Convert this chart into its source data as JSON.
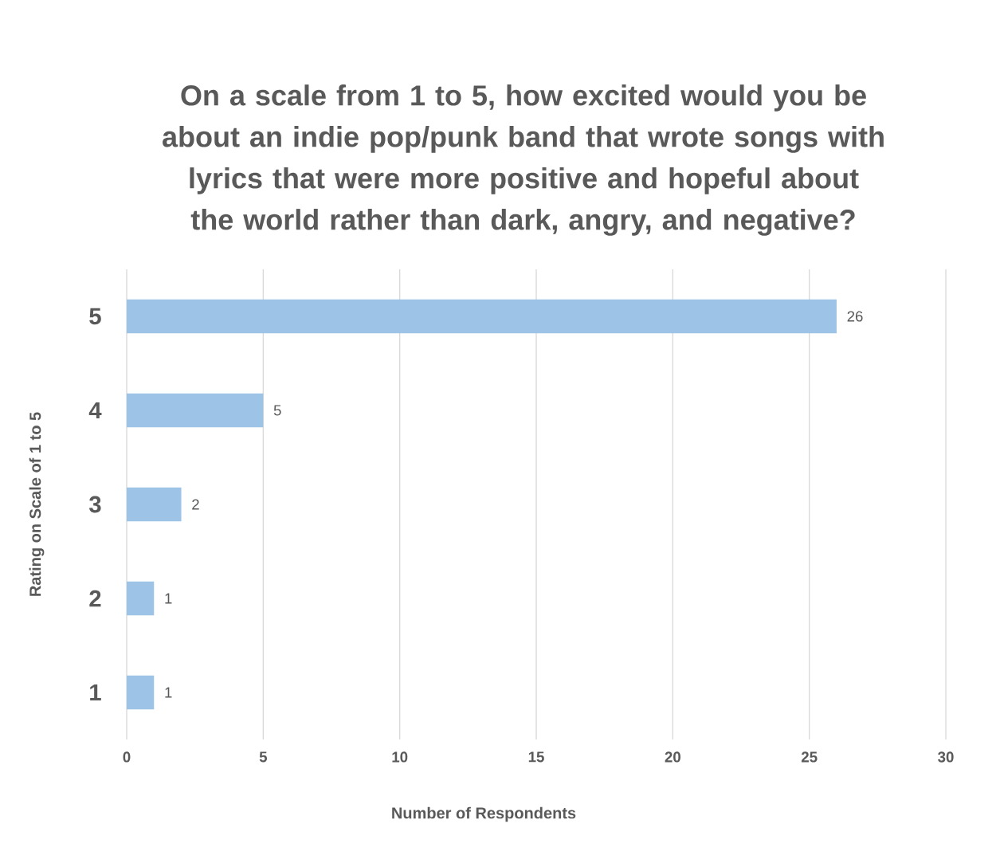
{
  "chart_data": {
    "type": "bar",
    "orientation": "horizontal",
    "title": "On a scale from 1 to 5, how excited would you be about an indie pop/punk band that wrote songs with lyrics that were more positive and hopeful about the world rather than dark, angry, and negative?",
    "xlabel": "Number of Respondents",
    "ylabel": "Rating on Scale of 1 to 5",
    "categories": [
      "5",
      "4",
      "3",
      "2",
      "1"
    ],
    "values": [
      26,
      5,
      2,
      1,
      1
    ],
    "color": "#9dc3e6",
    "data_labels": true,
    "xlim": [
      0,
      30
    ],
    "xticks": [
      0,
      5,
      10,
      15,
      20,
      25,
      30
    ],
    "grid": "x"
  }
}
